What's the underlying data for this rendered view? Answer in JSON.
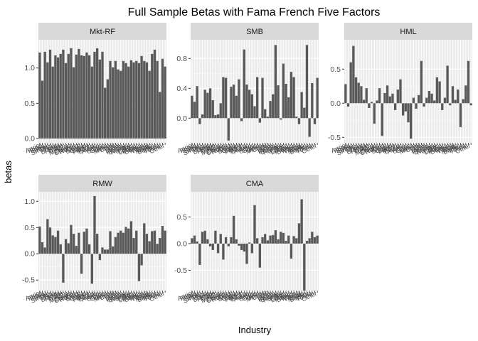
{
  "chart_data": {
    "type": "bar",
    "title": "Full Sample Betas with Fama French Five Factors",
    "xlabel": "Industry",
    "ylabel": "betas",
    "grid": true,
    "categories": [
      "Agric",
      "Food",
      "Soda",
      "Beer",
      "Smoke",
      "Toys",
      "Fun",
      "Books",
      "Hshld",
      "Clths",
      "Hlth",
      "MedEq",
      "Drugs",
      "Chems",
      "Rubbr",
      "Txtls",
      "BldMt",
      "Cnstr",
      "Steel",
      "FabPr",
      "Mach",
      "ElcEq",
      "Autos",
      "Aero",
      "Ships",
      "Guns",
      "Gold",
      "Mines",
      "Coal",
      "Oil",
      "Util",
      "Telcm",
      "PerSv",
      "BusSv",
      "Hardw",
      "Softw",
      "Chips",
      "LabEq",
      "Paper",
      "Boxes",
      "Trans",
      "Whlsl",
      "Rtail",
      "Meals",
      "Banks",
      "Insur",
      "RlEst",
      "Fin",
      "Other"
    ],
    "panels": [
      {
        "name": "Mkt-RF",
        "ylim": [
          -0.06,
          1.4
        ],
        "ticks": [
          0.0,
          0.5,
          1.0
        ],
        "tick_labels": [
          "0.0",
          "0.5",
          "1.0"
        ],
        "values": [
          1.22,
          0.82,
          1.23,
          1.08,
          1.26,
          1.02,
          1.18,
          1.15,
          1.2,
          1.26,
          1.07,
          1.2,
          1.28,
          1.01,
          1.19,
          1.27,
          1.18,
          1.17,
          1.22,
          1.18,
          1.02,
          1.23,
          1.28,
          1.12,
          1.23,
          0.72,
          0.84,
          1.1,
          1.01,
          1.1,
          0.98,
          0.96,
          1.1,
          1.07,
          1.02,
          1.11,
          1.08,
          1.1,
          1.07,
          1.17,
          1.1,
          1.08,
          0.96,
          1.2,
          1.26,
          1.1,
          0.66,
          1.13,
          1.02
        ]
      },
      {
        "name": "SMB",
        "ylim": [
          -0.33,
          1.05
        ],
        "ticks": [
          0.0,
          0.4,
          0.8
        ],
        "tick_labels": [
          "0.0",
          "0.4",
          "0.8"
        ],
        "values": [
          0.3,
          0.22,
          0.43,
          -0.08,
          0.05,
          0.38,
          0.34,
          0.4,
          0.24,
          0.04,
          0.05,
          0.2,
          0.55,
          0.54,
          -0.3,
          0.42,
          0.45,
          0.3,
          0.52,
          -0.04,
          0.92,
          0.45,
          0.38,
          0.32,
          0.16,
          0.55,
          -0.06,
          0.54,
          0.12,
          0.02,
          0.23,
          0.32,
          0.98,
          0.44,
          -0.02,
          0.73,
          0.46,
          0.28,
          0.62,
          0.55,
          0.02,
          -0.08,
          0.35,
          0.14,
          0.98,
          -0.25,
          0.47,
          -0.08,
          0.54
        ]
      },
      {
        "name": "HML",
        "ylim": [
          -0.58,
          0.93
        ],
        "ticks": [
          -0.5,
          0.0,
          0.5
        ],
        "tick_labels": [
          "-0.5",
          "0.0",
          "0.5"
        ],
        "values": [
          0.28,
          -0.05,
          0.6,
          0.84,
          0.38,
          0.3,
          0.25,
          0.05,
          0.22,
          -0.07,
          0.02,
          -0.3,
          0.04,
          0.22,
          -0.48,
          0.15,
          0.26,
          0.1,
          0.14,
          -0.1,
          0.2,
          0.35,
          -0.18,
          -0.12,
          -0.28,
          -0.52,
          0.08,
          -0.08,
          0.12,
          0.62,
          -0.05,
          0.08,
          0.18,
          0.14,
          0.04,
          0.38,
          0.32,
          -0.1,
          0.08,
          0.55,
          -0.03,
          0.25,
          0.05,
          0.2,
          -0.35,
          0.06,
          0.26,
          0.62,
          -0.03
        ]
      },
      {
        "name": "RMW",
        "ylim": [
          -0.7,
          1.18
        ],
        "ticks": [
          -0.5,
          0.0,
          0.5,
          1.0
        ],
        "tick_labels": [
          "-0.5",
          "0.0",
          "0.5",
          "1.0"
        ],
        "values": [
          0.52,
          0.22,
          0.12,
          0.66,
          0.5,
          0.35,
          0.32,
          0.44,
          0.18,
          -0.55,
          0.28,
          0.2,
          0.55,
          0.38,
          0.15,
          0.4,
          -0.38,
          0.42,
          0.48,
          0.18,
          -0.57,
          1.1,
          0.38,
          -0.12,
          0.12,
          0.08,
          0.08,
          0.43,
          0.14,
          0.32,
          0.4,
          0.44,
          0.4,
          0.51,
          0.48,
          0.62,
          0.3,
          0.44,
          -0.52,
          -0.22,
          0.58,
          0.38,
          0.24,
          0.43,
          0.44,
          0.19,
          0.3,
          0.53,
          0.44
        ]
      },
      {
        "name": "CMA",
        "ylim": [
          -0.88,
          0.97
        ],
        "ticks": [
          -0.5,
          0.0,
          0.5
        ],
        "tick_labels": [
          "-0.5",
          "0.0",
          "0.5"
        ],
        "values": [
          0.1,
          0.15,
          0.04,
          -0.4,
          0.22,
          0.24,
          0.08,
          -0.05,
          -0.12,
          0.24,
          -0.18,
          0.18,
          -0.3,
          0.12,
          -0.05,
          0.12,
          0.52,
          0.08,
          -0.04,
          -0.12,
          -0.15,
          -0.38,
          0.02,
          -0.18,
          0.72,
          0.1,
          -0.45,
          0.12,
          0.18,
          0.06,
          0.15,
          0.16,
          0.25,
          0.08,
          0.22,
          0.2,
          0.05,
          0.15,
          -0.28,
          0.14,
          0.1,
          0.38,
          0.83,
          -0.88,
          0.05,
          0.1,
          0.22,
          0.12,
          0.15
        ]
      }
    ]
  }
}
